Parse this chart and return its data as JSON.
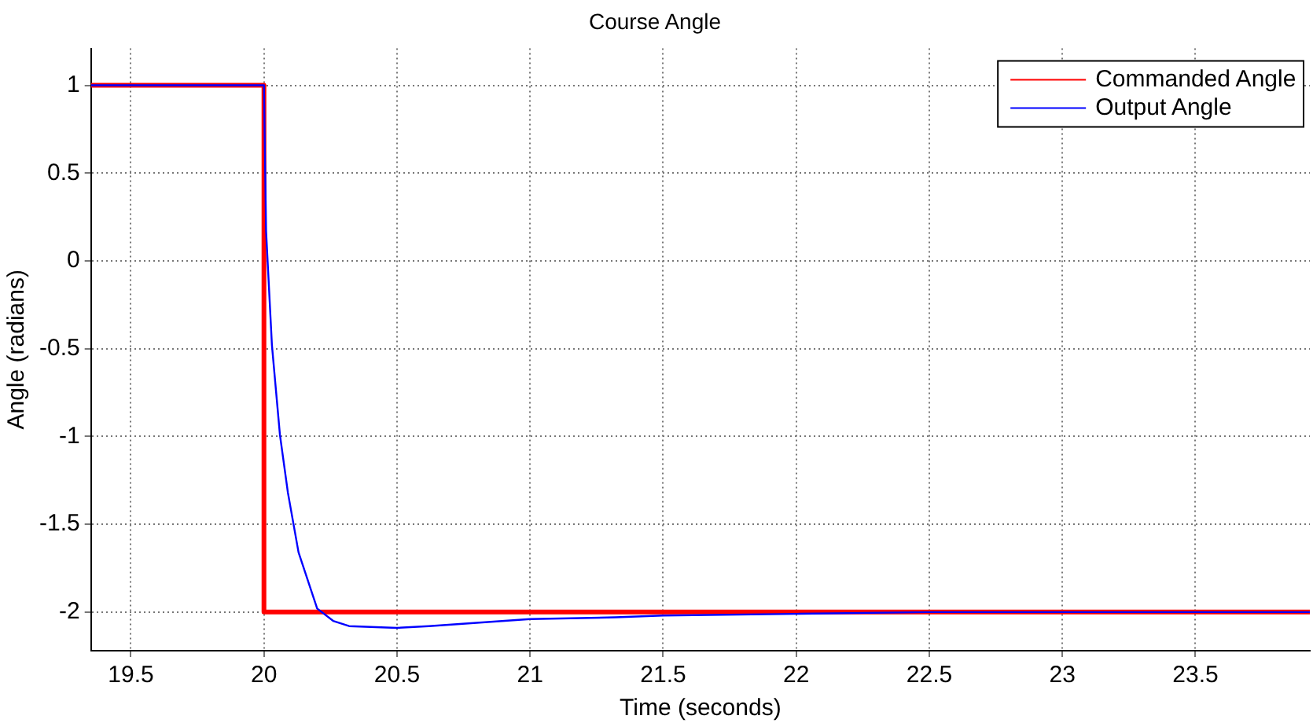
{
  "chart_data": {
    "type": "line",
    "title": "Course Angle",
    "xlabel": "Time (seconds)",
    "ylabel": "Angle (radians)",
    "x": [
      19.35,
      20,
      20,
      23.93
    ],
    "series": [
      {
        "name": "Commanded Angle",
        "color": "#ff0000",
        "values": [
          1,
          1,
          -2,
          -2
        ]
      },
      {
        "name": "Output Angle",
        "color": "#0000ff",
        "x": [
          19.35,
          20,
          20.008,
          20.03,
          20.06,
          20.09,
          20.13,
          20.2,
          20.26,
          20.32,
          20.5,
          20.62,
          21.0,
          21.32,
          21.5,
          22.0,
          22.5,
          23.0,
          23.5,
          23.93
        ],
        "values": [
          1,
          1,
          0.17,
          -0.48,
          -0.99,
          -1.32,
          -1.66,
          -1.98,
          -2.05,
          -2.08,
          -2.09,
          -2.08,
          -2.04,
          -2.03,
          -2.02,
          -2.01,
          -2.0,
          -2.0,
          -2.0,
          -2.0
        ]
      }
    ],
    "xlim": [
      19.35,
      23.93
    ],
    "ylim": [
      -2.22,
      1.21
    ],
    "xticks": [
      19.5,
      20,
      20.5,
      21,
      21.5,
      22,
      22.5,
      23,
      23.5
    ],
    "yticks": [
      -2,
      -1.5,
      -1,
      -0.5,
      0,
      0.5,
      1
    ],
    "grid": true,
    "legend": "top right",
    "marker": "none",
    "line_style": "solid"
  }
}
